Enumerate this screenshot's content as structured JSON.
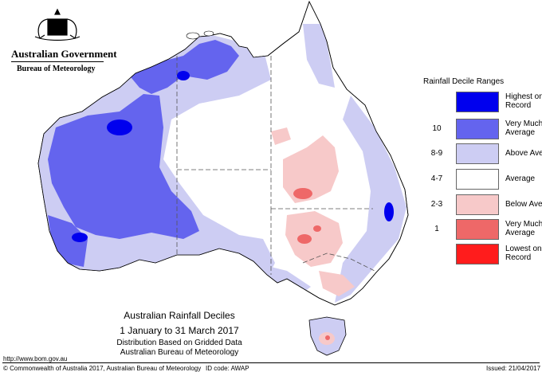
{
  "header": {
    "government": "Australian Government",
    "bureau": "Bureau of Meteorology"
  },
  "legend": {
    "title": "Rainfall Decile Ranges",
    "items": [
      {
        "range": "",
        "label": "Highest on Record",
        "color": "#0000ee"
      },
      {
        "range": "10",
        "label": "Very Much Above Average",
        "color": "#6464ee"
      },
      {
        "range": "8-9",
        "label": "Above Average",
        "color": "#cdcdf3"
      },
      {
        "range": "4-7",
        "label": "Average",
        "color": "#ffffff"
      },
      {
        "range": "2-3",
        "label": "Below Average",
        "color": "#f7c9c9"
      },
      {
        "range": "1",
        "label": "Very Much Below Average",
        "color": "#ee6868"
      },
      {
        "range": "",
        "label": "Lowest on Record",
        "color": "#ff1c1c"
      }
    ]
  },
  "map_title": {
    "line1": "Australian Rainfall Deciles",
    "line2": "1 January to 31 March 2017",
    "line3": "Distribution Based on Gridded Data",
    "line4": "Australian Bureau of Meteorology"
  },
  "footer": {
    "url": "http://www.bom.gov.au",
    "copyright": "© Commonwealth of Australia 2017, Australian Bureau of Meteorology",
    "id_code": "ID code: AWAP",
    "issued": "Issued: 21/04/2017"
  }
}
